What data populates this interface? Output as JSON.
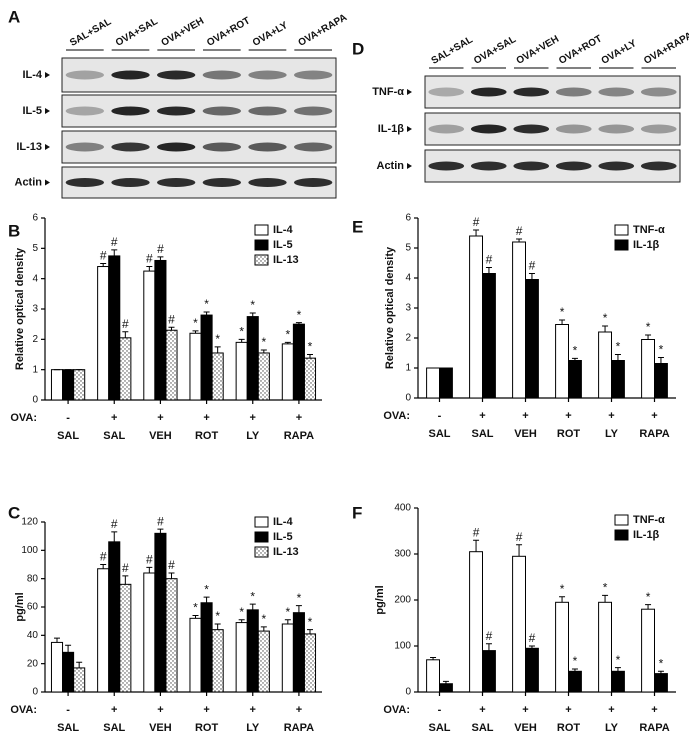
{
  "blots": [
    {
      "panel": "A",
      "lanes": [
        "SAL+SAL",
        "OVA+SAL",
        "OVA+VEH",
        "OVA+ROT",
        "OVA+LY",
        "OVA+RAPA"
      ],
      "rows": [
        "IL-4",
        "IL-5",
        "IL-13",
        "Actin"
      ]
    },
    {
      "panel": "D",
      "lanes": [
        "SAL+SAL",
        "OVA+SAL",
        "OVA+VEH",
        "OVA+ROT",
        "OVA+LY",
        "OVA+RAPA"
      ],
      "rows": [
        "TNF-α",
        "IL-1β",
        "Actin"
      ]
    }
  ],
  "chart_data": [
    {
      "type": "bar",
      "panel": "B",
      "ylabel": "Relative optical density",
      "xrow_label": "OVA:",
      "ova": [
        "-",
        "+",
        "+",
        "+",
        "+",
        "+"
      ],
      "categories": [
        "SAL",
        "SAL",
        "VEH",
        "ROT",
        "LY",
        "RAPA"
      ],
      "ylim": [
        0,
        6
      ],
      "yticks": [
        0,
        1,
        2,
        3,
        4,
        5,
        6
      ],
      "legend": "upper right",
      "series": [
        {
          "name": "IL-4",
          "color": "#ffffff",
          "values": [
            1,
            4.4,
            4.25,
            2.2,
            1.9,
            1.85
          ],
          "errors": [
            0,
            0.1,
            0.15,
            0.08,
            0.1,
            0.05
          ],
          "markers": [
            null,
            "#",
            "#",
            "*",
            "*",
            "*"
          ]
        },
        {
          "name": "IL-5",
          "color": "#000000",
          "values": [
            1,
            4.75,
            4.6,
            2.8,
            2.75,
            2.5
          ],
          "errors": [
            0,
            0.2,
            0.12,
            0.1,
            0.12,
            0.05
          ],
          "markers": [
            null,
            "#",
            "#",
            "*",
            "*",
            "*"
          ]
        },
        {
          "name": "IL-13",
          "color": "#ffffff",
          "pattern": "dotted",
          "values": [
            1,
            2.05,
            2.3,
            1.55,
            1.55,
            1.38
          ],
          "errors": [
            0,
            0.2,
            0.1,
            0.2,
            0.1,
            0.12
          ],
          "markers": [
            null,
            "#",
            "#",
            "*",
            "*",
            "*"
          ]
        }
      ]
    },
    {
      "type": "bar",
      "panel": "C",
      "ylabel": "pg/ml",
      "xrow_label": "OVA:",
      "ova": [
        "-",
        "+",
        "+",
        "+",
        "+",
        "+"
      ],
      "categories": [
        "SAL",
        "SAL",
        "VEH",
        "ROT",
        "LY",
        "RAPA"
      ],
      "ylim": [
        0,
        120
      ],
      "yticks": [
        0,
        20,
        40,
        60,
        80,
        100,
        120
      ],
      "legend": "upper right",
      "series": [
        {
          "name": "IL-4",
          "color": "#ffffff",
          "values": [
            35,
            87,
            84,
            52,
            49,
            48
          ],
          "errors": [
            3,
            3,
            4,
            2,
            2,
            3
          ],
          "markers": [
            null,
            "#",
            "#",
            "*",
            "*",
            "*"
          ]
        },
        {
          "name": "IL-5",
          "color": "#000000",
          "values": [
            28,
            106,
            112,
            63,
            58,
            56
          ],
          "errors": [
            5,
            7,
            3,
            4,
            4,
            5
          ],
          "markers": [
            null,
            "#",
            "#",
            "*",
            "*",
            "*"
          ]
        },
        {
          "name": "IL-13",
          "color": "#ffffff",
          "pattern": "dotted",
          "values": [
            17,
            76,
            80,
            44,
            43,
            41
          ],
          "errors": [
            4,
            6,
            4,
            4,
            3,
            3
          ],
          "markers": [
            null,
            "#",
            "#",
            "*",
            "*",
            "*"
          ]
        }
      ]
    },
    {
      "type": "bar",
      "panel": "E",
      "ylabel": "Relative optical density",
      "xrow_label": "OVA:",
      "ova": [
        "-",
        "+",
        "+",
        "+",
        "+",
        "+"
      ],
      "categories": [
        "SAL",
        "SAL",
        "VEH",
        "ROT",
        "LY",
        "RAPA"
      ],
      "ylim": [
        0,
        6
      ],
      "yticks": [
        0,
        1,
        2,
        3,
        4,
        5,
        6
      ],
      "legend": "upper right",
      "series": [
        {
          "name": "TNF-α",
          "color": "#ffffff",
          "values": [
            1,
            5.4,
            5.2,
            2.45,
            2.2,
            1.95
          ],
          "errors": [
            0,
            0.2,
            0.1,
            0.15,
            0.2,
            0.15
          ],
          "markers": [
            null,
            "#",
            "#",
            "*",
            "*",
            "*"
          ]
        },
        {
          "name": "IL-1β",
          "color": "#000000",
          "values": [
            1,
            4.15,
            3.95,
            1.25,
            1.25,
            1.15
          ],
          "errors": [
            0,
            0.2,
            0.2,
            0.07,
            0.2,
            0.2
          ],
          "markers": [
            null,
            "#",
            "#",
            "*",
            "*",
            "*"
          ]
        }
      ]
    },
    {
      "type": "bar",
      "panel": "F",
      "ylabel": "pg/ml",
      "xrow_label": "OVA:",
      "ova": [
        "-",
        "+",
        "+",
        "+",
        "+",
        "+"
      ],
      "categories": [
        "SAL",
        "SAL",
        "VEH",
        "ROT",
        "LY",
        "RAPA"
      ],
      "ylim": [
        0,
        400
      ],
      "yticks": [
        0,
        100,
        200,
        300,
        400
      ],
      "legend": "upper right",
      "series": [
        {
          "name": "TNF-α",
          "color": "#ffffff",
          "values": [
            70,
            305,
            295,
            195,
            195,
            180
          ],
          "errors": [
            5,
            25,
            25,
            12,
            15,
            10
          ],
          "markers": [
            null,
            "#",
            "#",
            "*",
            "*",
            "*"
          ]
        },
        {
          "name": "IL-1β",
          "color": "#000000",
          "values": [
            18,
            90,
            95,
            45,
            45,
            40
          ],
          "errors": [
            5,
            15,
            5,
            5,
            8,
            5
          ],
          "markers": [
            null,
            "#",
            "#",
            "*",
            "*",
            "*"
          ]
        }
      ]
    }
  ]
}
